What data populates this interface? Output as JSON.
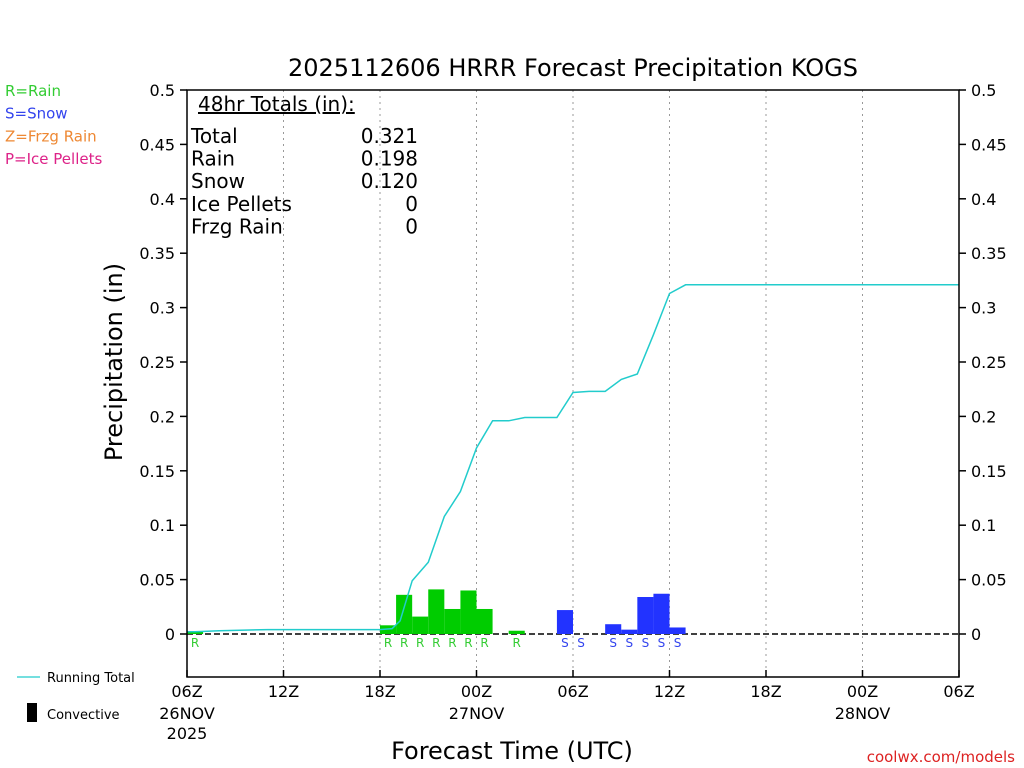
{
  "chart_data": {
    "type": "bar",
    "title": "2025112606 HRRR Forecast Precipitation KOGS",
    "xlabel": "Forecast Time (UTC)",
    "ylabel": "Precipitation (in)",
    "ylim": [
      0,
      0.5
    ],
    "xlim_hours": [
      0,
      48
    ],
    "y_ticks": [
      "0",
      "0.05",
      "0.1",
      "0.15",
      "0.2",
      "0.25",
      "0.3",
      "0.35",
      "0.4",
      "0.45",
      "0.5"
    ],
    "x_ticks": [
      {
        "hour": 0,
        "label": "06Z",
        "date": "26NOV",
        "year": "2025"
      },
      {
        "hour": 6,
        "label": "12Z"
      },
      {
        "hour": 12,
        "label": "18Z"
      },
      {
        "hour": 18,
        "label": "00Z",
        "date": "27NOV"
      },
      {
        "hour": 24,
        "label": "06Z"
      },
      {
        "hour": 30,
        "label": "12Z"
      },
      {
        "hour": 36,
        "label": "18Z"
      },
      {
        "hour": 42,
        "label": "00Z",
        "date": "28NOV"
      },
      {
        "hour": 48,
        "label": "06Z"
      }
    ],
    "hourly_precip": [
      {
        "hour": 1,
        "value": 0.002,
        "type": "R"
      },
      {
        "hour": 13,
        "value": 0.008,
        "type": "R"
      },
      {
        "hour": 14,
        "value": 0.036,
        "type": "R"
      },
      {
        "hour": 15,
        "value": 0.016,
        "type": "R"
      },
      {
        "hour": 16,
        "value": 0.041,
        "type": "R"
      },
      {
        "hour": 17,
        "value": 0.023,
        "type": "R"
      },
      {
        "hour": 18,
        "value": 0.04,
        "type": "R"
      },
      {
        "hour": 19,
        "value": 0.023,
        "type": "R"
      },
      {
        "hour": 21,
        "value": 0.003,
        "type": "R"
      },
      {
        "hour": 24,
        "value": 0.022,
        "type": "S"
      },
      {
        "hour": 25,
        "value": 0.0,
        "type": "S"
      },
      {
        "hour": 27,
        "value": 0.009,
        "type": "S"
      },
      {
        "hour": 28,
        "value": 0.004,
        "type": "S"
      },
      {
        "hour": 29,
        "value": 0.034,
        "type": "S"
      },
      {
        "hour": 30,
        "value": 0.037,
        "type": "S"
      },
      {
        "hour": 31,
        "value": 0.006,
        "type": "S"
      }
    ],
    "running_total": {
      "name": "Running Total",
      "hours": [
        0,
        0.5,
        2,
        5,
        7,
        12,
        12.75,
        13.25,
        14,
        15,
        16,
        17,
        18,
        19,
        20,
        21,
        22,
        23,
        24,
        25,
        26,
        27,
        28,
        29,
        30,
        31,
        48
      ],
      "values": [
        0.002,
        0.002,
        0.003,
        0.004,
        0.004,
        0.004,
        0.005,
        0.012,
        0.049,
        0.066,
        0.108,
        0.131,
        0.171,
        0.196,
        0.196,
        0.199,
        0.199,
        0.199,
        0.222,
        0.223,
        0.223,
        0.234,
        0.239,
        0.275,
        0.313,
        0.321,
        0.321
      ]
    },
    "totals_box": {
      "header": "48hr Totals (in):",
      "rows": [
        {
          "label": "Total",
          "value": "0.321"
        },
        {
          "label": "Rain",
          "value": "0.198"
        },
        {
          "label": "Snow",
          "value": "0.120"
        },
        {
          "label": "Ice Pellets",
          "value": "0"
        },
        {
          "label": "Frzg Rain",
          "value": "0"
        }
      ]
    },
    "type_legend": [
      {
        "code": "R",
        "text": "R=Rain",
        "color": "#33cc33"
      },
      {
        "code": "S",
        "text": "S=Snow",
        "color": "#3344ee"
      },
      {
        "code": "Z",
        "text": "Z=Frzg Rain",
        "color": "#ee8833"
      },
      {
        "code": "P",
        "text": "P=Ice Pellets",
        "color": "#dd2288"
      }
    ],
    "series_legend": [
      {
        "text": "Running Total",
        "color": "#22cccc"
      },
      {
        "text": "Convective",
        "color": "#000000"
      }
    ],
    "colors": {
      "rain": "#00cc00",
      "snow": "#2233ff",
      "running_total": "#22cccc",
      "rain_label": "#33cc33",
      "snow_label": "#3344ee"
    }
  },
  "footer": {
    "credit": "coolwx.com/models"
  }
}
